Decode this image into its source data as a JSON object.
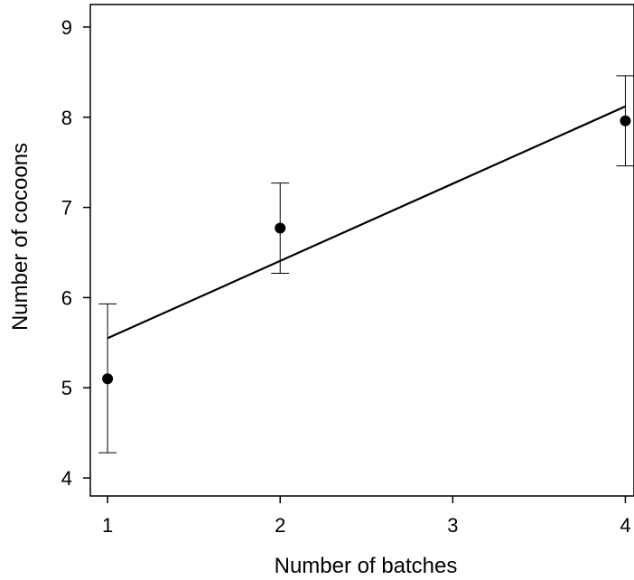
{
  "chart_data": {
    "type": "scatter",
    "xlabel": "Number of batches",
    "ylabel": "Number of cocoons",
    "xlim": [
      0.9,
      4.05
    ],
    "ylim": [
      3.8,
      9.25
    ],
    "xticks": [
      1,
      2,
      3,
      4
    ],
    "yticks": [
      4,
      5,
      6,
      7,
      8,
      9
    ],
    "grid": false,
    "points": [
      {
        "x": 1,
        "y": 5.1,
        "err_low": 4.28,
        "err_high": 5.93
      },
      {
        "x": 2,
        "y": 6.77,
        "err_low": 6.27,
        "err_high": 7.27
      },
      {
        "x": 4,
        "y": 7.96,
        "err_low": 7.46,
        "err_high": 8.46
      }
    ],
    "fit_line": {
      "x": [
        1,
        4
      ],
      "y": [
        5.55,
        8.12
      ]
    }
  }
}
